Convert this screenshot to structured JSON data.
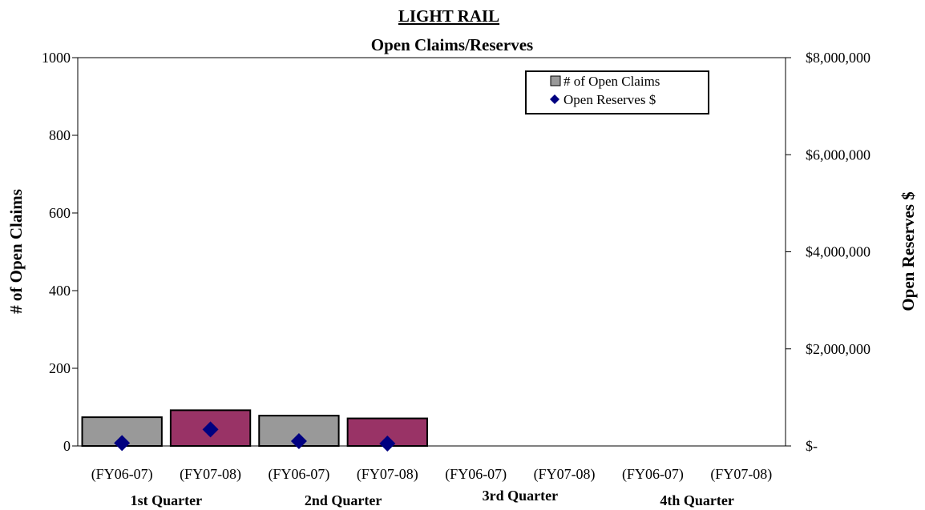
{
  "chart_data": {
    "type": "bar",
    "title": "LIGHT RAIL",
    "subtitle": "Open Claims/Reserves",
    "ylabel": "# of Open Claims",
    "y2label": "Open Reserves $",
    "ylim": [
      0,
      1000
    ],
    "y2lim": [
      0,
      8000000
    ],
    "yticks": [
      "0",
      "200",
      "400",
      "600",
      "800",
      "1000"
    ],
    "y2ticks": [
      "$-",
      "$2,000,000",
      "$4,000,000",
      "$6,000,000",
      "$8,000,000"
    ],
    "categories": [
      "(FY06-07)",
      "(FY07-08)",
      "(FY06-07)",
      "(FY07-08)",
      "(FY06-07)",
      "(FY07-08)",
      "(FY06-07)",
      "(FY07-08)"
    ],
    "groups": [
      "1st Quarter",
      "2nd Quarter",
      "3rd Quarter",
      "4th Quarter"
    ],
    "series": [
      {
        "name": "# of Open Claims",
        "axis": "left",
        "type": "bar",
        "values": [
          74,
          92,
          78,
          71,
          null,
          null,
          null,
          null
        ]
      },
      {
        "name": "Open Reserves $",
        "axis": "right",
        "type": "scatter",
        "values": [
          60000,
          340000,
          100000,
          50000,
          null,
          null,
          null,
          null
        ]
      }
    ],
    "colors": {
      "fy0607": "#999999",
      "fy0708": "#993366",
      "marker": "#000080"
    },
    "legend": "top-right",
    "grid": false
  }
}
